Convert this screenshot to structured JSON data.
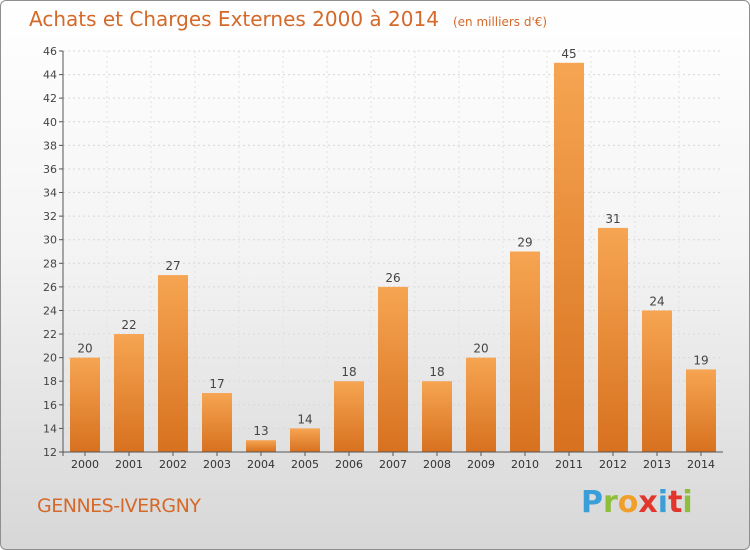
{
  "header": {
    "title": "Achats et Charges Externes 2000 à 2014",
    "subtitle": "(en milliers d'€)"
  },
  "footer": {
    "town": "GENNES-IVERGNY",
    "logo_text": "Proxiti"
  },
  "colors": {
    "bar_light": "#f6a552",
    "bar_dark": "#d7711f",
    "title": "#d4692a",
    "logo_letters": [
      "#3a9fd8",
      "#8ebf3a",
      "#f0a02a",
      "#e2362d",
      "#3a9fd8",
      "#e2362d",
      "#8ebf3a"
    ]
  },
  "chart_data": {
    "type": "bar",
    "title": "Achats et Charges Externes 2000 à 2014",
    "subtitle": "(en milliers d'€)",
    "categories": [
      "2000",
      "2001",
      "2002",
      "2003",
      "2004",
      "2005",
      "2006",
      "2007",
      "2008",
      "2009",
      "2010",
      "2011",
      "2012",
      "2013",
      "2014"
    ],
    "values": [
      20,
      22,
      27,
      17,
      13,
      14,
      18,
      26,
      18,
      20,
      29,
      45,
      31,
      24,
      19
    ],
    "ylim": [
      12,
      46
    ],
    "yticks": [
      12,
      14,
      16,
      18,
      20,
      22,
      24,
      26,
      28,
      30,
      32,
      34,
      36,
      38,
      40,
      42,
      44,
      46
    ],
    "grid": true,
    "data_labels": true
  }
}
